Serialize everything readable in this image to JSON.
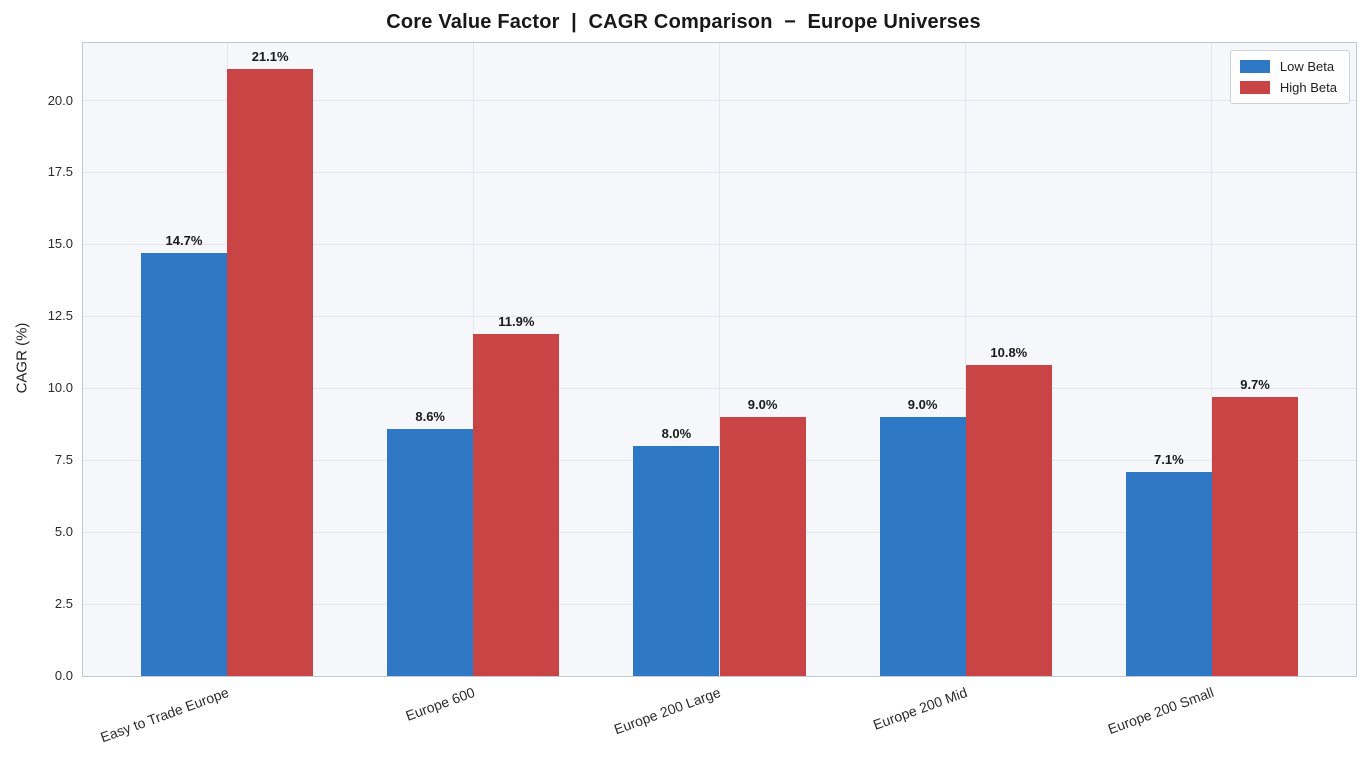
{
  "title": "Core Value Factor  |  CAGR Comparison  −  Europe Universes",
  "chart_data": {
    "type": "bar",
    "title": "Core Value Factor  |  CAGR Comparison  −  Europe Universes",
    "xlabel": "",
    "ylabel": "CAGR (%)",
    "categories": [
      "Easy to Trade Europe",
      "Europe 600",
      "Europe 200 Large",
      "Europe 200 Mid",
      "Europe 200 Small"
    ],
    "series": [
      {
        "name": "Low Beta",
        "color": "#2E78C5",
        "values": [
          14.7,
          8.6,
          8.0,
          9.0,
          7.1
        ],
        "value_labels": [
          "14.7%",
          "8.6%",
          "8.0%",
          "9.0%",
          "7.1%"
        ]
      },
      {
        "name": "High Beta",
        "color": "#C94545",
        "values": [
          21.1,
          11.9,
          9.0,
          10.8,
          9.7
        ],
        "value_labels": [
          "21.1%",
          "11.9%",
          "9.0%",
          "10.8%",
          "9.7%"
        ]
      }
    ],
    "yticks": [
      0.0,
      2.5,
      5.0,
      7.5,
      10.0,
      12.5,
      15.0,
      17.5,
      20.0
    ],
    "ytick_labels": [
      "0.0",
      "2.5",
      "5.0",
      "7.5",
      "10.0",
      "12.5",
      "15.0",
      "17.5",
      "20.0"
    ],
    "ylim": [
      0,
      22
    ],
    "grid": true,
    "legend_position": "upper right",
    "bar_width": 0.35,
    "xlim": [
      -0.585,
      4.585
    ],
    "x_label_rotation_deg": 20
  },
  "colors": {
    "plot_background": "#f5f7fa",
    "figure_background": "#ffffff",
    "gridline": "#e2e7ed",
    "plot_border": "#c3c8ce",
    "low_beta": "#2E78C5",
    "high_beta": "#C94545",
    "text": "#1f1f1f"
  }
}
